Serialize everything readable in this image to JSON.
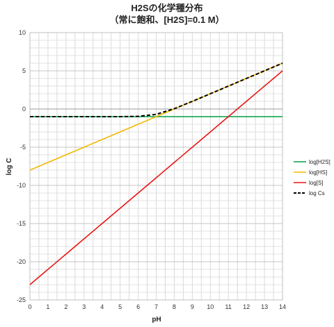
{
  "chart_data": {
    "type": "line",
    "title": "H2Sの化学種分布",
    "subtitle": "（常に飽和、[H2S]=0.1 M）",
    "xlabel": "pH",
    "ylabel": "log C",
    "xlim": [
      0,
      14
    ],
    "ylim": [
      -25,
      10
    ],
    "xticks": [
      "0",
      "1",
      "2",
      "3",
      "4",
      "5",
      "6",
      "7",
      "8",
      "9",
      "10",
      "11",
      "12",
      "13",
      "14"
    ],
    "yticks": [
      "10",
      "5",
      "0",
      "-5",
      "-10",
      "-15",
      "-20",
      "-25"
    ],
    "grid": true,
    "legend_position": "right",
    "x": [
      0,
      1,
      2,
      3,
      4,
      5,
      6,
      7,
      8,
      9,
      10,
      11,
      12,
      13,
      14
    ],
    "series": [
      {
        "name": "log[H2S]",
        "color": "#00a040",
        "style": "solid",
        "values": [
          -1,
          -1,
          -1,
          -1,
          -1,
          -1,
          -1,
          -1,
          -1,
          -1,
          -1,
          -1,
          -1,
          -1,
          -1
        ]
      },
      {
        "name": "log[HS]",
        "color": "#f2b800",
        "style": "solid",
        "values": [
          -8,
          -7,
          -6,
          -5,
          -4,
          -3,
          -2,
          -1,
          0,
          1,
          2,
          3,
          4,
          5,
          6
        ]
      },
      {
        "name": "log[S]",
        "color": "#e81010",
        "style": "solid",
        "values": [
          -23,
          -21,
          -19,
          -17,
          -15,
          -13,
          -11,
          -9,
          -7,
          -5,
          -3,
          -1,
          1,
          3,
          5
        ]
      },
      {
        "name": "log Cs",
        "color": "#000000",
        "style": "dashed",
        "values": [
          -1,
          -1,
          -1,
          -1,
          -1,
          -1,
          -0.96,
          -0.7,
          0.04,
          1,
          2,
          3,
          4,
          5,
          6
        ]
      }
    ]
  }
}
